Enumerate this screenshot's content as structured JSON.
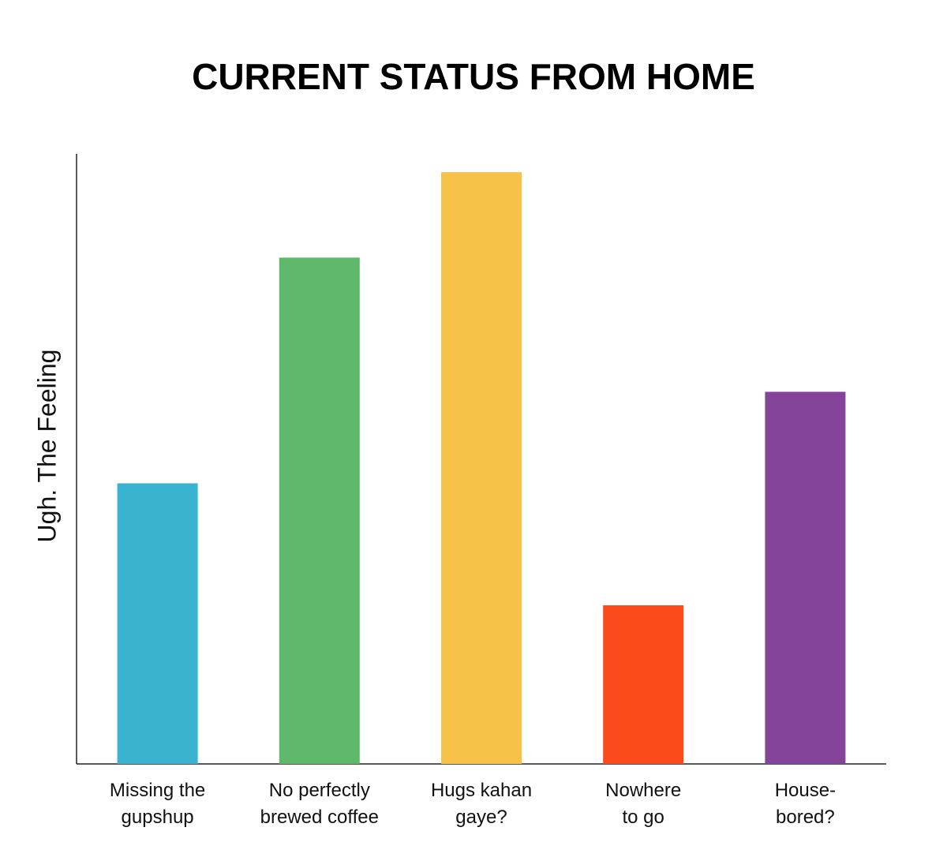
{
  "chart_data": {
    "type": "bar",
    "title": "CURRENT STATUS FROM HOME",
    "y_label": "Ugh. The Feeling",
    "categories": [
      "Missing the\ngupshup",
      "No perfectly\nbrewed coffee",
      "Hugs kahan\ngaye?",
      "Nowhere\nto go",
      "House-\nbored?"
    ],
    "values": [
      46,
      83,
      97,
      26,
      61
    ],
    "colors": [
      "#3ab3d0",
      "#5eb96a",
      "#f5c146",
      "#fb4b1d",
      "#84449a"
    ],
    "ylim": [
      0,
      100
    ]
  }
}
